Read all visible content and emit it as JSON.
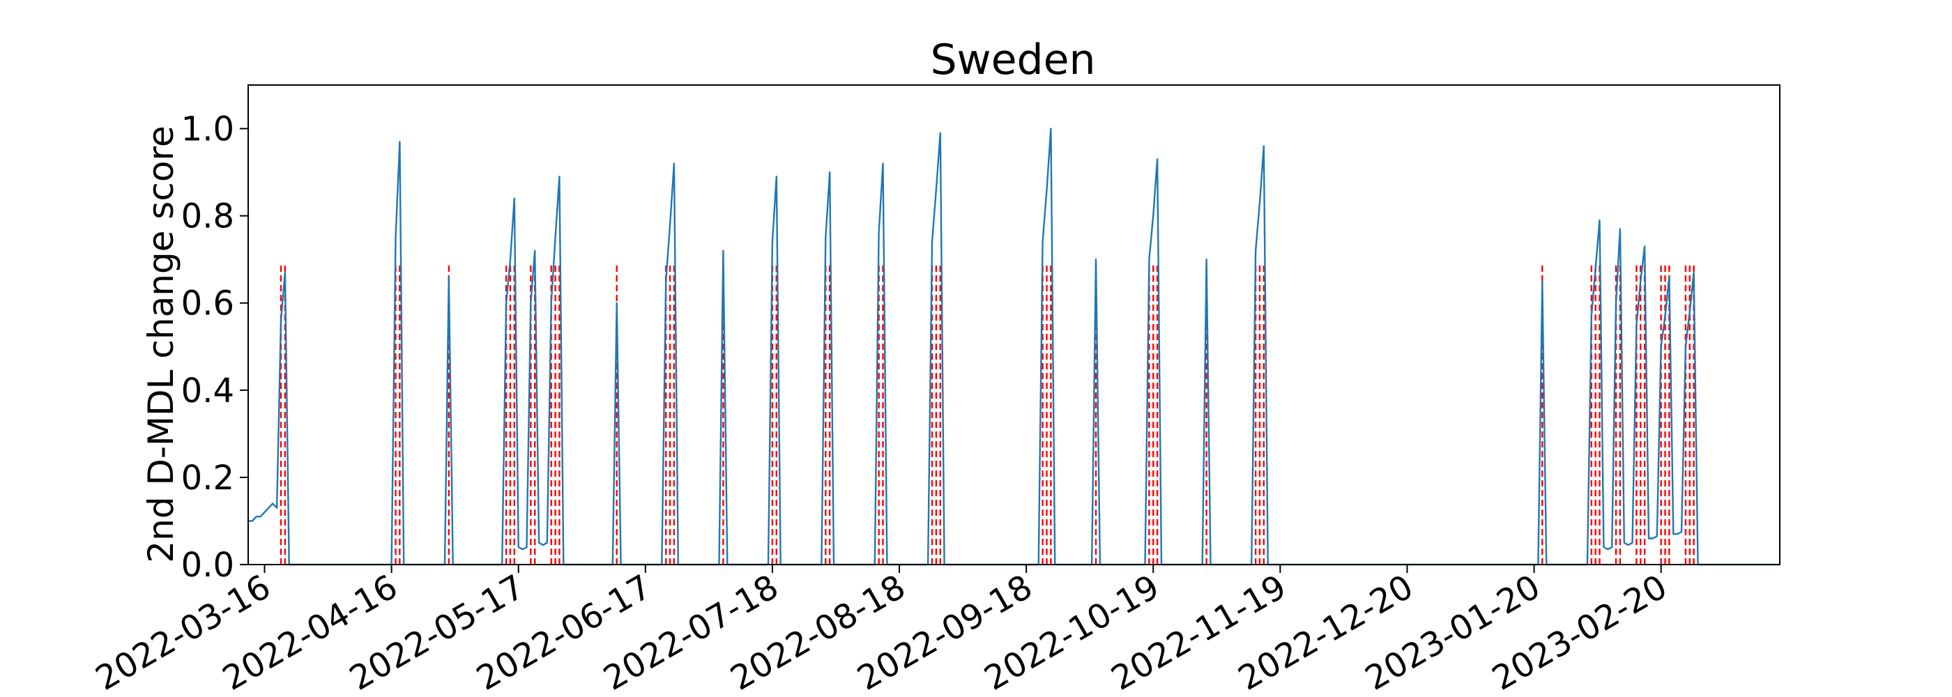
{
  "chart_data": {
    "type": "line",
    "title": "Sweden",
    "xlabel": "",
    "ylabel": "2nd D-MDL change score",
    "x_start": "2022-03-12",
    "x_end": "2023-03-21",
    "ylim": [
      0,
      1.1
    ],
    "y_ticks": [
      0.0,
      0.2,
      0.4,
      0.6,
      0.8,
      1.0
    ],
    "y_tick_labels": [
      "0.0",
      "0.2",
      "0.4",
      "0.6",
      "0.8",
      "1.0"
    ],
    "x_ticks": [
      "2022-03-16",
      "2022-04-16",
      "2022-05-17",
      "2022-06-17",
      "2022-07-18",
      "2022-08-18",
      "2022-09-18",
      "2022-10-19",
      "2022-11-19",
      "2022-12-20",
      "2023-01-20",
      "2023-02-20"
    ],
    "grid": false,
    "series": [
      {
        "color": "#1f77b4",
        "points": [
          [
            "2022-03-12",
            0.1
          ],
          [
            "2022-03-13",
            0.1
          ],
          [
            "2022-03-14",
            0.11
          ],
          [
            "2022-03-15",
            0.11
          ],
          [
            "2022-03-16",
            0.12
          ],
          [
            "2022-03-17",
            0.13
          ],
          [
            "2022-03-18",
            0.14
          ],
          [
            "2022-03-19",
            0.13
          ],
          [
            "2022-03-20",
            0.56
          ],
          [
            "2022-03-21",
            0.67
          ],
          [
            "2022-03-22",
            0.0
          ],
          [
            "2022-04-15",
            0.0
          ],
          [
            "2022-04-16",
            0.0
          ],
          [
            "2022-04-17",
            0.75
          ],
          [
            "2022-04-18",
            0.97
          ],
          [
            "2022-04-19",
            0.0
          ],
          [
            "2022-04-29",
            0.0
          ],
          [
            "2022-04-30",
            0.66
          ],
          [
            "2022-05-01",
            0.0
          ],
          [
            "2022-05-13",
            0.0
          ],
          [
            "2022-05-14",
            0.6
          ],
          [
            "2022-05-15",
            0.7
          ],
          [
            "2022-05-16",
            0.84
          ],
          [
            "2022-05-17",
            0.04
          ],
          [
            "2022-05-18",
            0.035
          ],
          [
            "2022-05-19",
            0.04
          ],
          [
            "2022-05-20",
            0.6
          ],
          [
            "2022-05-21",
            0.72
          ],
          [
            "2022-05-22",
            0.05
          ],
          [
            "2022-05-23",
            0.045
          ],
          [
            "2022-05-24",
            0.05
          ],
          [
            "2022-05-25",
            0.6
          ],
          [
            "2022-05-26",
            0.75
          ],
          [
            "2022-05-27",
            0.89
          ],
          [
            "2022-05-28",
            0.0
          ],
          [
            "2022-06-09",
            0.0
          ],
          [
            "2022-06-10",
            0.6
          ],
          [
            "2022-06-11",
            0.0
          ],
          [
            "2022-06-21",
            0.0
          ],
          [
            "2022-06-22",
            0.65
          ],
          [
            "2022-06-23",
            0.78
          ],
          [
            "2022-06-24",
            0.92
          ],
          [
            "2022-06-25",
            0.0
          ],
          [
            "2022-07-05",
            0.0
          ],
          [
            "2022-07-06",
            0.72
          ],
          [
            "2022-07-07",
            0.0
          ],
          [
            "2022-07-17",
            0.0
          ],
          [
            "2022-07-18",
            0.74
          ],
          [
            "2022-07-19",
            0.89
          ],
          [
            "2022-07-20",
            0.0
          ],
          [
            "2022-07-30",
            0.0
          ],
          [
            "2022-07-31",
            0.75
          ],
          [
            "2022-08-01",
            0.9
          ],
          [
            "2022-08-02",
            0.0
          ],
          [
            "2022-08-12",
            0.0
          ],
          [
            "2022-08-13",
            0.76
          ],
          [
            "2022-08-14",
            0.92
          ],
          [
            "2022-08-15",
            0.0
          ],
          [
            "2022-08-25",
            0.0
          ],
          [
            "2022-08-26",
            0.74
          ],
          [
            "2022-08-27",
            0.86
          ],
          [
            "2022-08-28",
            0.99
          ],
          [
            "2022-08-29",
            0.0
          ],
          [
            "2022-09-21",
            0.0
          ],
          [
            "2022-09-22",
            0.74
          ],
          [
            "2022-09-23",
            0.86
          ],
          [
            "2022-09-24",
            1.0
          ],
          [
            "2022-09-25",
            0.0
          ],
          [
            "2022-10-04",
            0.0
          ],
          [
            "2022-10-05",
            0.7
          ],
          [
            "2022-10-06",
            0.0
          ],
          [
            "2022-10-17",
            0.0
          ],
          [
            "2022-10-18",
            0.7
          ],
          [
            "2022-10-19",
            0.8
          ],
          [
            "2022-10-20",
            0.93
          ],
          [
            "2022-10-21",
            0.0
          ],
          [
            "2022-10-31",
            0.0
          ],
          [
            "2022-11-01",
            0.7
          ],
          [
            "2022-11-02",
            0.0
          ],
          [
            "2022-11-12",
            0.0
          ],
          [
            "2022-11-13",
            0.72
          ],
          [
            "2022-11-14",
            0.83
          ],
          [
            "2022-11-15",
            0.96
          ],
          [
            "2022-11-16",
            0.0
          ],
          [
            "2023-01-21",
            0.0
          ],
          [
            "2023-01-22",
            0.65
          ],
          [
            "2023-01-23",
            0.0
          ],
          [
            "2023-02-02",
            0.0
          ],
          [
            "2023-02-03",
            0.57
          ],
          [
            "2023-02-04",
            0.68
          ],
          [
            "2023-02-05",
            0.79
          ],
          [
            "2023-02-06",
            0.04
          ],
          [
            "2023-02-07",
            0.035
          ],
          [
            "2023-02-08",
            0.04
          ],
          [
            "2023-02-09",
            0.6
          ],
          [
            "2023-02-10",
            0.77
          ],
          [
            "2023-02-11",
            0.05
          ],
          [
            "2023-02-12",
            0.045
          ],
          [
            "2023-02-13",
            0.05
          ],
          [
            "2023-02-14",
            0.55
          ],
          [
            "2023-02-15",
            0.65
          ],
          [
            "2023-02-16",
            0.73
          ],
          [
            "2023-02-17",
            0.06
          ],
          [
            "2023-02-18",
            0.06
          ],
          [
            "2023-02-19",
            0.065
          ],
          [
            "2023-02-20",
            0.5
          ],
          [
            "2023-02-21",
            0.57
          ],
          [
            "2023-02-22",
            0.66
          ],
          [
            "2023-02-23",
            0.07
          ],
          [
            "2023-02-24",
            0.07
          ],
          [
            "2023-02-25",
            0.075
          ],
          [
            "2023-02-26",
            0.5
          ],
          [
            "2023-02-27",
            0.58
          ],
          [
            "2023-02-28",
            0.67
          ],
          [
            "2023-03-01",
            0.0
          ],
          [
            "2023-03-06",
            0.0
          ],
          [
            "2023-03-21",
            0.0
          ]
        ]
      }
    ],
    "change_points": {
      "color": "#ff0000",
      "style": "dashed",
      "dates": [
        "2022-03-20",
        "2022-03-21",
        "2022-04-17",
        "2022-04-18",
        "2022-04-30",
        "2022-05-14",
        "2022-05-15",
        "2022-05-16",
        "2022-05-20",
        "2022-05-21",
        "2022-05-25",
        "2022-05-26",
        "2022-05-27",
        "2022-06-10",
        "2022-06-22",
        "2022-06-23",
        "2022-06-24",
        "2022-07-06",
        "2022-07-18",
        "2022-07-19",
        "2022-07-31",
        "2022-08-01",
        "2022-08-13",
        "2022-08-14",
        "2022-08-26",
        "2022-08-27",
        "2022-08-28",
        "2022-09-22",
        "2022-09-23",
        "2022-09-24",
        "2022-10-05",
        "2022-10-18",
        "2022-10-19",
        "2022-10-20",
        "2022-11-01",
        "2022-11-13",
        "2022-11-14",
        "2022-11-15",
        "2023-01-22",
        "2023-02-03",
        "2023-02-04",
        "2023-02-05",
        "2023-02-09",
        "2023-02-10",
        "2023-02-14",
        "2023-02-15",
        "2023-02-16",
        "2023-02-20",
        "2023-02-21",
        "2023-02-22",
        "2023-02-26",
        "2023-02-27",
        "2023-02-28"
      ]
    }
  }
}
